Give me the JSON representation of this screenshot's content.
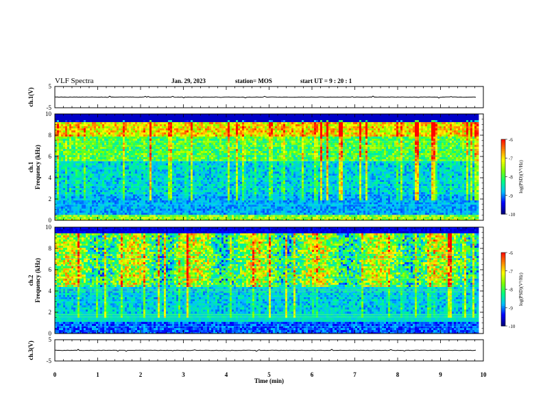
{
  "header": {
    "title": "VLF Spectra",
    "date": "Jan. 29, 2023",
    "station": "station= MOS",
    "start_ut": "start UT =  9 : 20 : 1"
  },
  "chart_data": [
    {
      "type": "line",
      "panel": "ch1_waveform",
      "ylabel": "ch.1(V)",
      "ylim": [
        -5,
        5
      ],
      "yticks": [
        "5",
        "-5"
      ],
      "x": [
        0,
        9.85
      ],
      "y": [
        0,
        0
      ]
    },
    {
      "type": "heatmap",
      "panel": "ch1_spectrogram",
      "ylabel_lines": [
        "ch.1",
        "Frequency (kHz)"
      ],
      "ylim": [
        0,
        10
      ],
      "yticks": [
        "0",
        "2",
        "4",
        "6",
        "8",
        "10"
      ],
      "xlim": [
        0,
        10
      ],
      "data_xlim": [
        0,
        9.85
      ],
      "colorbar": {
        "label": "log(PSD)(V²/Hz)",
        "range": [
          -10,
          -6
        ],
        "ticks": [
          "-6",
          "-7",
          "-8",
          "-9",
          "-10"
        ]
      }
    },
    {
      "type": "heatmap",
      "panel": "ch2_spectrogram",
      "ylabel_lines": [
        "ch.2",
        "Frequency (kHz)"
      ],
      "ylim": [
        0,
        10
      ],
      "yticks": [
        "0",
        "2",
        "4",
        "6",
        "8",
        "10"
      ],
      "xlim": [
        0,
        10
      ],
      "data_xlim": [
        0,
        9.85
      ],
      "colorbar": {
        "label": "log(PSD)(V²/Hz)",
        "range": [
          -10,
          -6
        ],
        "ticks": [
          "-6",
          "-7",
          "-8",
          "-9",
          "-10"
        ]
      }
    },
    {
      "type": "line",
      "panel": "ch3_waveform",
      "ylabel": "ch.3(V)",
      "ylim": [
        -5,
        5
      ],
      "yticks": [
        "5",
        "-5"
      ],
      "x": [
        0,
        9.85
      ],
      "y": [
        0,
        0
      ]
    }
  ],
  "xaxis": {
    "label": "Time (min)",
    "ticks": [
      "0",
      "1",
      "2",
      "3",
      "4",
      "5",
      "6",
      "7",
      "8",
      "9",
      "10"
    ]
  },
  "colors": {
    "colormap": [
      "#00007f",
      "#0000ff",
      "#00bfff",
      "#00ff80",
      "#80ff00",
      "#ffff00",
      "#ff8000",
      "#ff0000",
      "#ffffff"
    ],
    "background": "#ffffff",
    "axes": "#000000"
  }
}
